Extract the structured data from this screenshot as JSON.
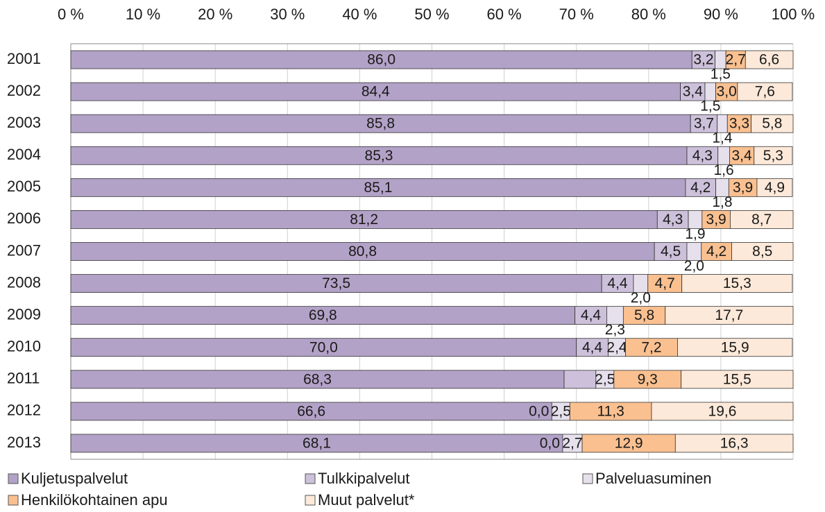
{
  "chart_data": {
    "type": "stacked-bar-horizontal",
    "categories": [
      "2001",
      "2002",
      "2003",
      "2004",
      "2005",
      "2006",
      "2007",
      "2008",
      "2009",
      "2010",
      "2011",
      "2012",
      "2013"
    ],
    "xlim": [
      0,
      100
    ],
    "xticks": [
      {
        "value": 0,
        "label": "0 %"
      },
      {
        "value": 10,
        "label": "10 %"
      },
      {
        "value": 20,
        "label": "20 %"
      },
      {
        "value": 30,
        "label": "30 %"
      },
      {
        "value": 40,
        "label": "40 %"
      },
      {
        "value": 50,
        "label": "50 %"
      },
      {
        "value": 60,
        "label": "60 %"
      },
      {
        "value": 70,
        "label": "70 %"
      },
      {
        "value": 80,
        "label": "80 %"
      },
      {
        "value": 90,
        "label": "90 %"
      },
      {
        "value": 100,
        "label": "100 %"
      }
    ],
    "grid": true,
    "legend": "bottom",
    "series": [
      {
        "name": "Kuljetuspalvelut",
        "color": "#b3a2c7",
        "values": [
          86.0,
          84.4,
          85.8,
          85.3,
          85.1,
          81.2,
          80.8,
          73.5,
          69.8,
          70.0,
          68.3,
          66.6,
          68.1
        ],
        "value_labels": [
          "86,0",
          "84,4",
          "85,8",
          "85,3",
          "85,1",
          "81,2",
          "80,8",
          "73,5",
          "69,8",
          "70,0",
          "68,3",
          "66,6",
          "68,1"
        ]
      },
      {
        "name": "Tulkkipalvelut",
        "color": "#ccc0da",
        "values": [
          3.2,
          3.4,
          3.7,
          4.3,
          4.2,
          4.3,
          4.5,
          4.4,
          4.4,
          4.4,
          4.4,
          0.0,
          0.0
        ],
        "value_labels": [
          "3,2",
          "3,4",
          "3,7",
          "4,3",
          "4,2",
          "4,3",
          "4,5",
          "4,4",
          "4,4",
          "4,4",
          null,
          "0,0",
          "0,0"
        ]
      },
      {
        "name": "Palveluasuminen",
        "color": "#e6e0ec",
        "values": [
          1.5,
          1.5,
          1.4,
          1.6,
          1.8,
          1.9,
          2.0,
          2.0,
          2.3,
          2.4,
          2.5,
          2.5,
          2.7
        ],
        "value_labels": [
          "1,5",
          "1,5",
          "1,4",
          "1,6",
          "1,8",
          "1,9",
          "2,0",
          "2,0",
          "2,3",
          "2,4",
          "2,5",
          "2,5",
          "2,7"
        ]
      },
      {
        "name": "Henkilökohtainen apu",
        "color": "#fac090",
        "values": [
          2.7,
          3.0,
          3.3,
          3.4,
          3.9,
          3.9,
          4.2,
          4.7,
          5.8,
          7.2,
          9.3,
          11.3,
          12.9
        ],
        "value_labels": [
          "2,7",
          "3,0",
          "3,3",
          "3,4",
          "3,9",
          "3,9",
          "4,2",
          "4,7",
          "5,8",
          "7,2",
          "9,3",
          "11,3",
          "12,9"
        ]
      },
      {
        "name": "Muut palvelut*",
        "color": "#fde9d9",
        "values": [
          6.6,
          7.6,
          5.8,
          5.3,
          4.9,
          8.7,
          8.5,
          15.3,
          17.7,
          15.9,
          15.5,
          19.6,
          16.3
        ],
        "value_labels": [
          "6,6",
          "7,6",
          "5,8",
          "5,3",
          "4,9",
          "8,7",
          "8,5",
          "15,3",
          "17,7",
          "15,9",
          "15,5",
          "19,6",
          "16,3"
        ]
      }
    ]
  }
}
